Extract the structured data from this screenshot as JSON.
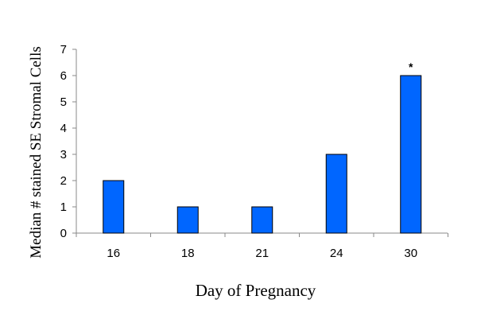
{
  "chart_data": {
    "type": "bar",
    "categories": [
      "16",
      "18",
      "21",
      "24",
      "30"
    ],
    "values": [
      2,
      1,
      1,
      3,
      6
    ],
    "title": "",
    "xlabel": "Day of Pregnancy",
    "ylabel": "Median # stained SE Stromal Cells",
    "ylim": [
      0,
      7
    ],
    "yticks": [
      "0",
      "1",
      "2",
      "3",
      "4",
      "5",
      "6",
      "7"
    ],
    "grid": false,
    "legend": "none",
    "bar_color": "#0066FF",
    "bar_edge_color": "#000000",
    "annotations": [
      {
        "category": "30",
        "text": "*"
      }
    ]
  }
}
